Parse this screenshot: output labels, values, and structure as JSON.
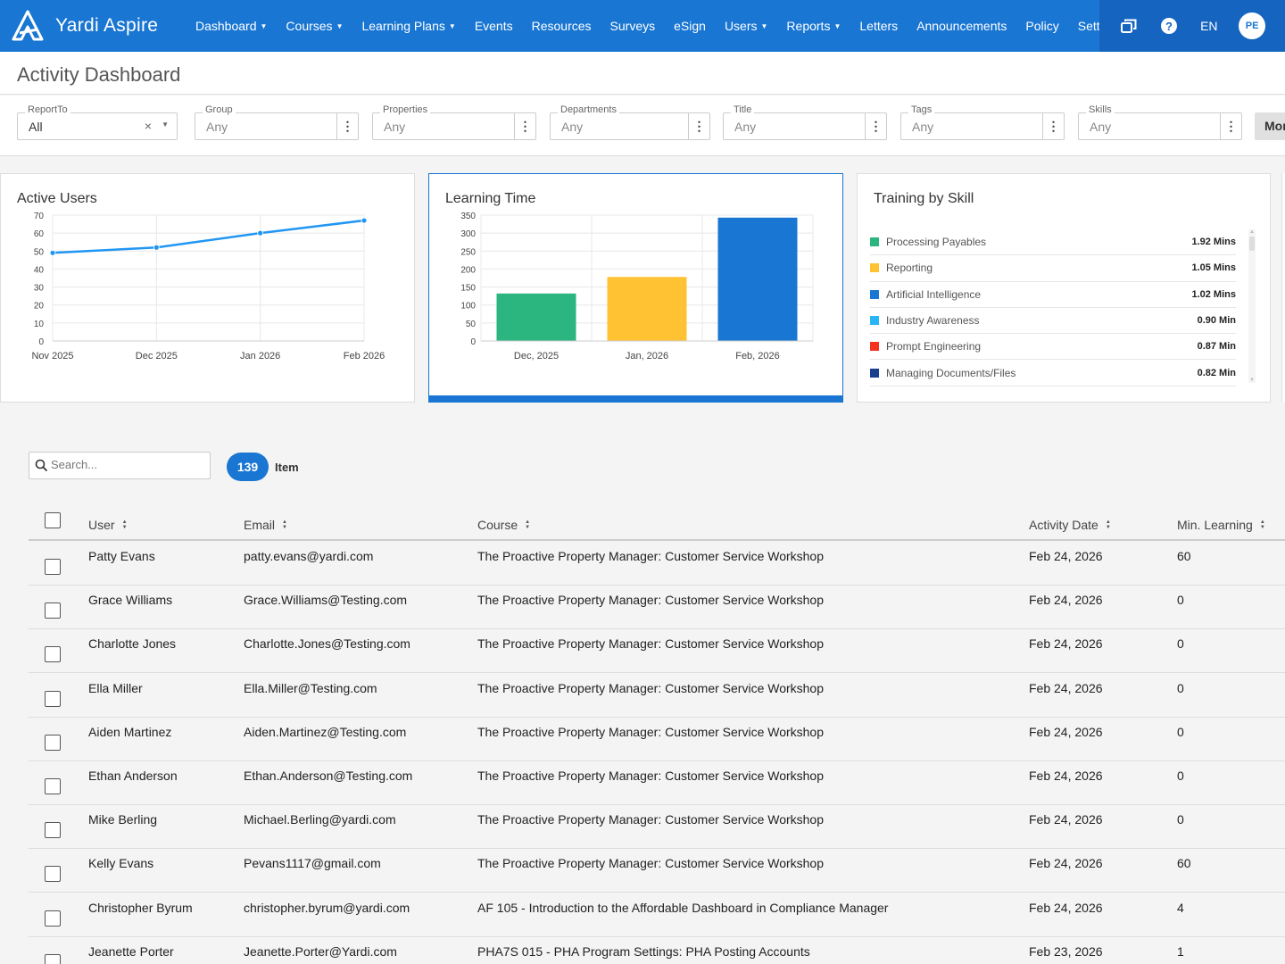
{
  "app": {
    "name": "Yardi Aspire",
    "avatar_initials": "PE",
    "language": "EN"
  },
  "nav": [
    {
      "label": "Dashboard",
      "dropdown": true
    },
    {
      "label": "Courses",
      "dropdown": true
    },
    {
      "label": "Learning Plans",
      "dropdown": true
    },
    {
      "label": "Events",
      "dropdown": false
    },
    {
      "label": "Resources",
      "dropdown": false
    },
    {
      "label": "Surveys",
      "dropdown": false
    },
    {
      "label": "eSign",
      "dropdown": false
    },
    {
      "label": "Users",
      "dropdown": true
    },
    {
      "label": "Reports",
      "dropdown": true
    },
    {
      "label": "Letters",
      "dropdown": false
    },
    {
      "label": "Announcements",
      "dropdown": false
    },
    {
      "label": "Policy",
      "dropdown": false
    },
    {
      "label": "Settings",
      "dropdown": false
    }
  ],
  "page": {
    "title": "Activity Dashboard"
  },
  "filters": [
    {
      "label": "ReportTo",
      "value": "All"
    },
    {
      "label": "Group",
      "value": "Any"
    },
    {
      "label": "Properties",
      "value": "Any"
    },
    {
      "label": "Departments",
      "value": "Any"
    },
    {
      "label": "Title",
      "value": "Any"
    },
    {
      "label": "Tags",
      "value": "Any"
    },
    {
      "label": "Skills",
      "value": "Any"
    }
  ],
  "more_button": "More",
  "cards": {
    "active_users": {
      "title": "Active Users"
    },
    "learning_time": {
      "title": "Learning Time"
    },
    "training_by_skill": {
      "title": "Training by Skill"
    }
  },
  "chart_data": [
    {
      "type": "line",
      "title": "Active Users",
      "x": [
        "Nov 2025",
        "Dec 2025",
        "Jan 2026",
        "Feb 2026"
      ],
      "series": [
        {
          "values": [
            49,
            52,
            60,
            67
          ]
        }
      ],
      "ylim": [
        0,
        70
      ],
      "yticks": [
        0,
        10,
        20,
        30,
        40,
        50,
        60,
        70
      ],
      "grid": true,
      "color": "#2196f3"
    },
    {
      "type": "bar",
      "title": "Learning Time",
      "categories": [
        "Dec, 2025",
        "Jan, 2026",
        "Feb, 2026"
      ],
      "values": [
        132,
        178,
        343
      ],
      "colors": [
        "#2bb57f",
        "#ffc233",
        "#1976d2"
      ],
      "ylim": [
        0,
        350
      ],
      "yticks": [
        0,
        50,
        100,
        150,
        200,
        250,
        300,
        350
      ],
      "grid": true
    },
    {
      "type": "table",
      "title": "Training by Skill",
      "rows": [
        {
          "skill": "Processing Payables",
          "value": "1.92 Mins",
          "color": "#2bb57f"
        },
        {
          "skill": "Reporting",
          "value": "1.05 Mins",
          "color": "#ffc233"
        },
        {
          "skill": "Artificial Intelligence",
          "value": "1.02 Mins",
          "color": "#1976d2"
        },
        {
          "skill": "Industry Awareness",
          "value": "0.90 Min",
          "color": "#29b6f6"
        },
        {
          "skill": "Prompt Engineering",
          "value": "0.87 Min",
          "color": "#f4321e"
        },
        {
          "skill": "Managing Documents/Files",
          "value": "0.82 Min",
          "color": "#1a3f8f"
        }
      ]
    }
  ],
  "search": {
    "placeholder": "Search..."
  },
  "item_count": {
    "count": "139",
    "label": "Item"
  },
  "table": {
    "columns": [
      "User",
      "Email",
      "Course",
      "Activity Date",
      "Min. Learning"
    ],
    "rows": [
      {
        "user": "Patty Evans",
        "email": "patty.evans@yardi.com",
        "course": "The Proactive Property Manager: Customer Service Workshop",
        "date": "Feb 24, 2026",
        "min": "60"
      },
      {
        "user": "Grace Williams",
        "email": "Grace.Williams@Testing.com",
        "course": "The Proactive Property Manager: Customer Service Workshop",
        "date": "Feb 24, 2026",
        "min": "0"
      },
      {
        "user": "Charlotte Jones",
        "email": "Charlotte.Jones@Testing.com",
        "course": "The Proactive Property Manager: Customer Service Workshop",
        "date": "Feb 24, 2026",
        "min": "0"
      },
      {
        "user": "Ella Miller",
        "email": "Ella.Miller@Testing.com",
        "course": "The Proactive Property Manager: Customer Service Workshop",
        "date": "Feb 24, 2026",
        "min": "0"
      },
      {
        "user": "Aiden Martinez",
        "email": "Aiden.Martinez@Testing.com",
        "course": "The Proactive Property Manager: Customer Service Workshop",
        "date": "Feb 24, 2026",
        "min": "0"
      },
      {
        "user": "Ethan Anderson",
        "email": "Ethan.Anderson@Testing.com",
        "course": "The Proactive Property Manager: Customer Service Workshop",
        "date": "Feb 24, 2026",
        "min": "0"
      },
      {
        "user": "Mike Berling",
        "email": "Michael.Berling@yardi.com",
        "course": "The Proactive Property Manager: Customer Service Workshop",
        "date": "Feb 24, 2026",
        "min": "0"
      },
      {
        "user": "Kelly Evans",
        "email": "Pevans1117@gmail.com",
        "course": "The Proactive Property Manager: Customer Service Workshop",
        "date": "Feb 24, 2026",
        "min": "60"
      },
      {
        "user": "Christopher Byrum",
        "email": "christopher.byrum@yardi.com",
        "course": "AF 105 - Introduction to the Affordable Dashboard in Compliance Manager",
        "date": "Feb 24, 2026",
        "min": "4"
      },
      {
        "user": "Jeanette Porter",
        "email": "Jeanette.Porter@Yardi.com",
        "course": "PHA7S 015 - PHA Program Settings: PHA Posting Accounts",
        "date": "Feb 23, 2026",
        "min": "1"
      }
    ]
  }
}
